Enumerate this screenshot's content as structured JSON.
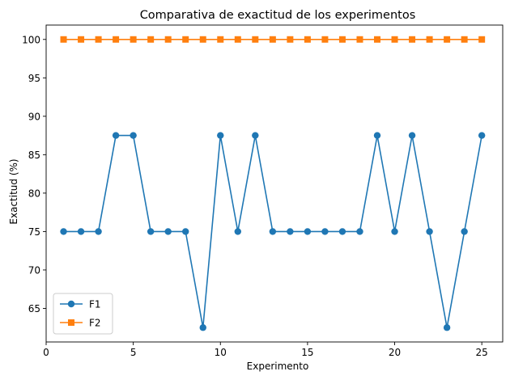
{
  "chart_data": {
    "type": "line",
    "title": "Comparativa de exactitud de los experimentos",
    "xlabel": "Experimento",
    "ylabel": "Exactitud (%)",
    "xlim": [
      0,
      26.2
    ],
    "ylim": [
      60.63,
      101.87
    ],
    "xticks": [
      0,
      5,
      10,
      15,
      20,
      25
    ],
    "yticks": [
      65,
      70,
      75,
      80,
      85,
      90,
      95,
      100
    ],
    "grid": false,
    "legend_position": "lower-left",
    "x": [
      1,
      2,
      3,
      4,
      5,
      6,
      7,
      8,
      9,
      10,
      11,
      12,
      13,
      14,
      15,
      16,
      17,
      18,
      19,
      20,
      21,
      22,
      23,
      24,
      25
    ],
    "series": [
      {
        "name": "F1",
        "color": "#1f77b4",
        "marker": "circle",
        "values": [
          75,
          75,
          75,
          87.5,
          87.5,
          75,
          75,
          75,
          62.5,
          87.5,
          75,
          87.5,
          75,
          75,
          75,
          75,
          75,
          75,
          87.5,
          75,
          87.5,
          75,
          62.5,
          75,
          87.5
        ]
      },
      {
        "name": "F2",
        "color": "#ff7f0e",
        "marker": "square",
        "values": [
          100,
          100,
          100,
          100,
          100,
          100,
          100,
          100,
          100,
          100,
          100,
          100,
          100,
          100,
          100,
          100,
          100,
          100,
          100,
          100,
          100,
          100,
          100,
          100,
          100
        ]
      }
    ]
  }
}
